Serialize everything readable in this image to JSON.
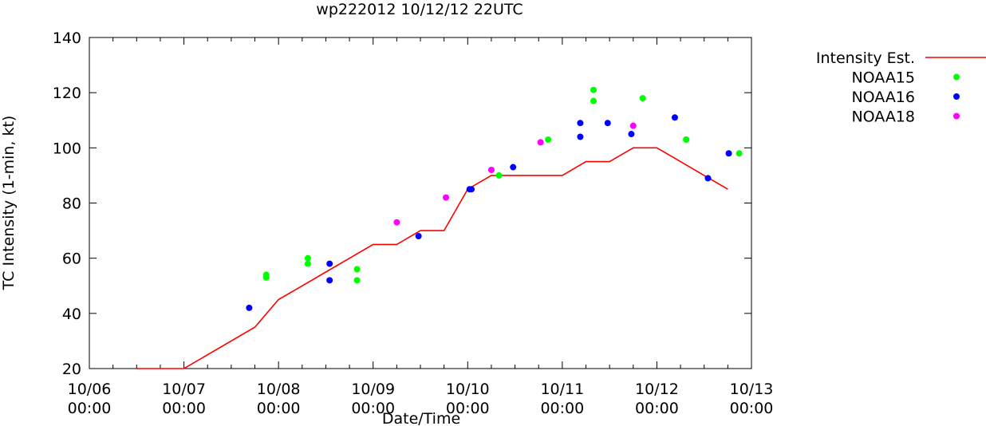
{
  "chart_data": {
    "type": "line",
    "title": "wp222012 10/12/12 22UTC",
    "xlabel": "Date/Time",
    "ylabel": "TC Intensity (1-min, kt)",
    "x_unit": "days since 10/06 00:00",
    "xlim": [
      0,
      7
    ],
    "ylim": [
      20,
      140
    ],
    "yticks": [
      20,
      40,
      60,
      80,
      100,
      120,
      140
    ],
    "xticks": [
      {
        "x": 0,
        "line1": "10/06",
        "line2": "00:00"
      },
      {
        "x": 1,
        "line1": "10/07",
        "line2": "00:00"
      },
      {
        "x": 2,
        "line1": "10/08",
        "line2": "00:00"
      },
      {
        "x": 3,
        "line1": "10/09",
        "line2": "00:00"
      },
      {
        "x": 4,
        "line1": "10/10",
        "line2": "00:00"
      },
      {
        "x": 5,
        "line1": "10/11",
        "line2": "00:00"
      },
      {
        "x": 6,
        "line1": "10/12",
        "line2": "00:00"
      },
      {
        "x": 7,
        "line1": "10/13",
        "line2": "00:00"
      }
    ],
    "grid": false,
    "legend_position": "right-outside-top",
    "series": [
      {
        "name": "Intensity Est.",
        "kind": "line",
        "color": "#ff0000",
        "x": [
          0.5,
          1.0,
          1.75,
          2.0,
          2.25,
          2.5,
          2.75,
          3.0,
          3.25,
          3.5,
          3.75,
          4.0,
          4.25,
          4.5,
          4.75,
          5.0,
          5.25,
          5.5,
          5.75,
          6.0,
          6.25,
          6.5,
          6.75
        ],
        "y": [
          20,
          20,
          35,
          45,
          50,
          55,
          60,
          65,
          65,
          70,
          70,
          85,
          90,
          90,
          90,
          90,
          95,
          95,
          100,
          100,
          95,
          90,
          85
        ]
      },
      {
        "name": "NOAA15",
        "kind": "points",
        "color": "#00ff00",
        "x": [
          1.87,
          1.87,
          2.31,
          2.31,
          2.83,
          2.83,
          4.33,
          4.85,
          5.33,
          5.33,
          5.85,
          6.31,
          6.31,
          6.87
        ],
        "y": [
          54,
          53,
          60,
          58,
          56,
          52,
          90,
          103,
          121,
          117,
          118,
          103,
          103,
          98
        ]
      },
      {
        "name": "NOAA16",
        "kind": "points",
        "color": "#0000ff",
        "x": [
          1.69,
          2.54,
          2.54,
          3.48,
          4.02,
          4.04,
          4.48,
          5.19,
          5.19,
          5.48,
          5.73,
          6.19,
          6.54,
          6.76
        ],
        "y": [
          42,
          58,
          52,
          68,
          85,
          85,
          93,
          109,
          104,
          109,
          105,
          111,
          89,
          98
        ]
      },
      {
        "name": "NOAA18",
        "kind": "points",
        "color": "#ff00ff",
        "x": [
          3.25,
          3.77,
          4.25,
          4.77,
          5.75
        ],
        "y": [
          73,
          82,
          92,
          102,
          108
        ]
      }
    ]
  }
}
